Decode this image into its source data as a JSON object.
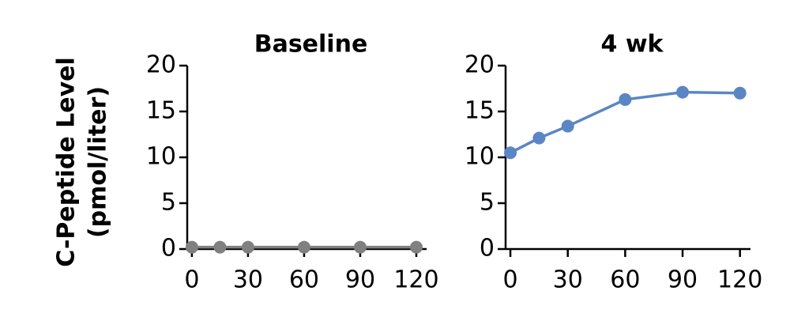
{
  "chart_data": [
    {
      "type": "line",
      "title": "Baseline",
      "ylabel": [
        "C-Peptide Level",
        "(pmol/liter)"
      ],
      "x": [
        0,
        15,
        30,
        60,
        90,
        120
      ],
      "series": [
        {
          "color": "#808080",
          "values": [
            0.2,
            0.2,
            0.2,
            0.2,
            0.2,
            0.2
          ]
        }
      ],
      "xlim": [
        -2.5,
        125.5
      ],
      "ylim": [
        0,
        20
      ],
      "xticks": [
        0,
        30,
        60,
        90,
        120
      ],
      "yticks": [
        0,
        5,
        10,
        15,
        20
      ]
    },
    {
      "type": "line",
      "title": "4 wk",
      "x": [
        0,
        15,
        30,
        60,
        90,
        120
      ],
      "series": [
        {
          "color": "#5b86c5",
          "values": [
            10.5,
            12.1,
            13.4,
            16.3,
            17.1,
            17.0
          ]
        }
      ],
      "xlim": [
        -2.5,
        125.5
      ],
      "ylim": [
        0,
        20
      ],
      "xticks": [
        0,
        30,
        60,
        90,
        120
      ],
      "yticks": [
        0,
        5,
        10,
        15,
        20
      ]
    }
  ]
}
